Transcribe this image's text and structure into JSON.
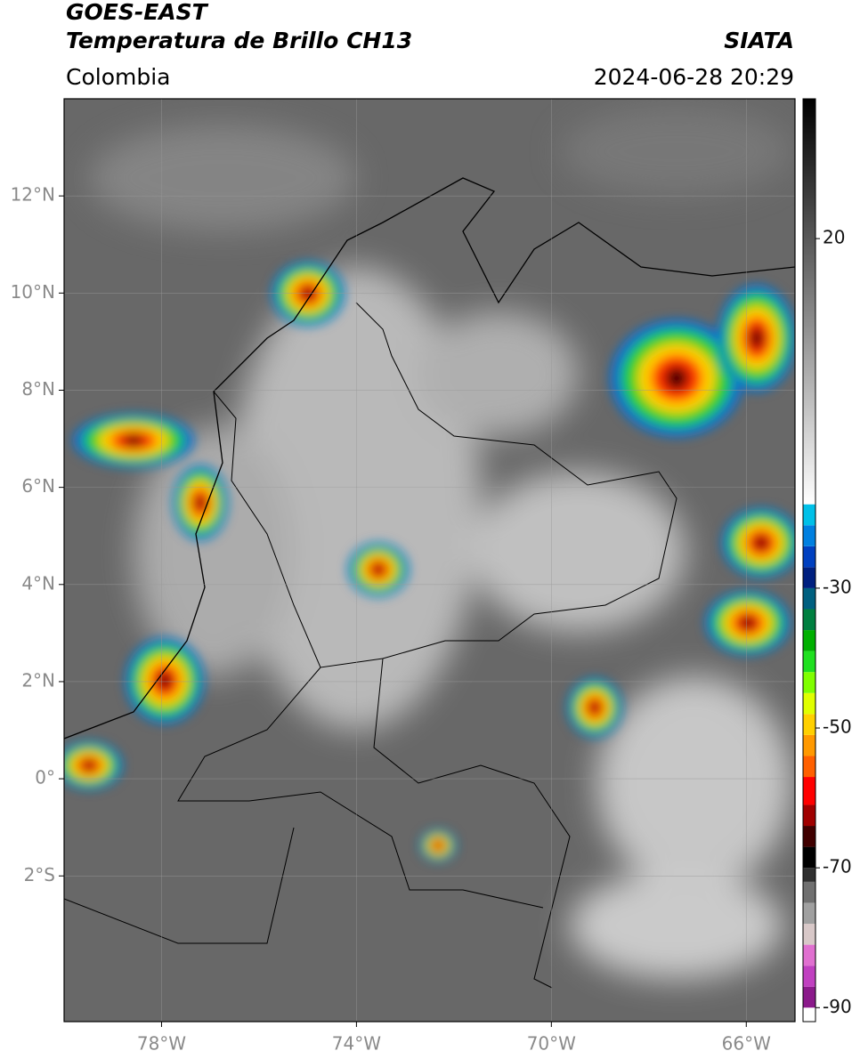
{
  "chart_data": {
    "type": "map",
    "title": "GOES-EAST",
    "subtitle": "Temperatura de Brillo CH13",
    "source": "SIATA",
    "region": "Colombia",
    "datetime": "2024-06-28 20:29",
    "xlim": [
      -80,
      -65
    ],
    "ylim": [
      -5,
      14
    ],
    "xticks": [
      {
        "value": -78,
        "label": "78°W"
      },
      {
        "value": -74,
        "label": "74°W"
      },
      {
        "value": -70,
        "label": "70°W"
      },
      {
        "value": -66,
        "label": "66°W"
      }
    ],
    "yticks": [
      {
        "value": 12,
        "label": "12°N"
      },
      {
        "value": 10,
        "label": "10°N"
      },
      {
        "value": 8,
        "label": "8°N"
      },
      {
        "value": 6,
        "label": "6°N"
      },
      {
        "value": 4,
        "label": "4°N"
      },
      {
        "value": 2,
        "label": "2°N"
      },
      {
        "value": 0,
        "label": "0°"
      },
      {
        "value": -2,
        "label": "2°S"
      }
    ],
    "grid": true,
    "colorbar": {
      "lim": [
        -92,
        40
      ],
      "ticks": [
        20,
        -30,
        -50,
        -70,
        -90
      ],
      "stops": [
        {
          "value": -92,
          "color": "#ffffff"
        },
        {
          "value": -90,
          "color": "#8b1a8b"
        },
        {
          "value": -87,
          "color": "#c040c0"
        },
        {
          "value": -84,
          "color": "#e070d0"
        },
        {
          "value": -81,
          "color": "#d8c8c8"
        },
        {
          "value": -78,
          "color": "#a0a0a0"
        },
        {
          "value": -75,
          "color": "#707070"
        },
        {
          "value": -72,
          "color": "#303030"
        },
        {
          "value": -70,
          "color": "#000000"
        },
        {
          "value": -67,
          "color": "#400000"
        },
        {
          "value": -64,
          "color": "#a00000"
        },
        {
          "value": -61,
          "color": "#ff0000"
        },
        {
          "value": -57,
          "color": "#ff6000"
        },
        {
          "value": -54,
          "color": "#ff9900"
        },
        {
          "value": -51,
          "color": "#ffd000"
        },
        {
          "value": -48,
          "color": "#e0ff00"
        },
        {
          "value": -45,
          "color": "#80ff00"
        },
        {
          "value": -42,
          "color": "#20e020"
        },
        {
          "value": -39,
          "color": "#00b000"
        },
        {
          "value": -36,
          "color": "#008040"
        },
        {
          "value": -33,
          "color": "#006080"
        },
        {
          "value": -30,
          "color": "#002080"
        },
        {
          "value": -27,
          "color": "#0040c0"
        },
        {
          "value": -24,
          "color": "#0080e0"
        },
        {
          "value": -21,
          "color": "#00c0e8"
        },
        {
          "value": -18,
          "color": "#ffffff",
          "gradient_to": "#000000"
        }
      ]
    }
  }
}
